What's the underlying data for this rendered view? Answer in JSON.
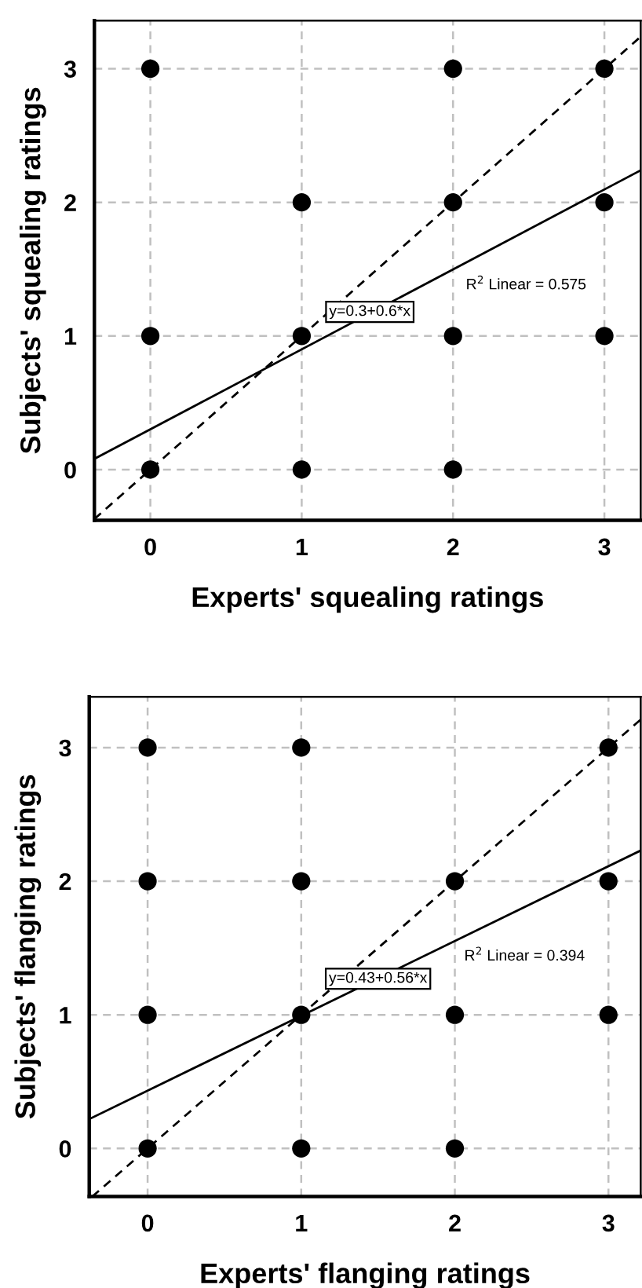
{
  "chart_data": [
    {
      "type": "scatter",
      "xlabel": "Experts' squealing ratings",
      "ylabel": "Subjects' squealing ratings",
      "xlim": [
        -0.37,
        3.24
      ],
      "ylim": [
        -0.38,
        3.36
      ],
      "xticks": [
        0,
        1,
        2,
        3
      ],
      "yticks": [
        0,
        1,
        2,
        3
      ],
      "grid": true,
      "series": [
        {
          "type": "scatter",
          "marker": "circle",
          "color": "#000000",
          "x": [
            0,
            2,
            3,
            1,
            2,
            3,
            0,
            1,
            2,
            3,
            0,
            1,
            2
          ],
          "values": [
            3,
            3,
            3,
            2,
            2,
            2,
            1,
            1,
            1,
            1,
            0,
            0,
            0
          ]
        },
        {
          "type": "line",
          "color": "#000000",
          "line_style": "solid",
          "x": [
            -0.37,
            3.24
          ],
          "values": [
            0.08,
            2.24
          ]
        },
        {
          "type": "line",
          "color": "#000000",
          "line_style": "dashed",
          "x": [
            -0.37,
            3.24
          ],
          "values": [
            -0.37,
            3.24
          ]
        }
      ],
      "annotations": [
        {
          "text": "y=0.3+0.6*x",
          "x": 1.45,
          "y": 1.18
        },
        "R$^{2}$ Linear = 0.575"
      ]
    },
    {
      "type": "scatter",
      "xlabel": "Experts' flanging ratings",
      "ylabel": "Subjects' flanging ratings",
      "xlim": [
        -0.38,
        3.21
      ],
      "ylim": [
        -0.36,
        3.38
      ],
      "xticks": [
        0,
        1,
        2,
        3
      ],
      "yticks": [
        0,
        1,
        2,
        3
      ],
      "grid": true,
      "series": [
        {
          "type": "scatter",
          "marker": "circle",
          "color": "#000000",
          "x": [
            0,
            1,
            3,
            0,
            1,
            2,
            3,
            0,
            1,
            2,
            3,
            0,
            1,
            2
          ],
          "values": [
            3,
            3,
            3,
            2,
            2,
            2,
            2,
            1,
            1,
            1,
            1,
            0,
            0,
            0
          ]
        },
        {
          "type": "line",
          "color": "#000000",
          "line_style": "solid",
          "x": [
            -0.38,
            3.21
          ],
          "values": [
            0.22,
            2.23
          ]
        },
        {
          "type": "line",
          "color": "#000000",
          "line_style": "dashed",
          "x": [
            -0.36,
            3.21
          ],
          "values": [
            -0.36,
            3.21
          ]
        }
      ],
      "annotations": [
        {
          "text": "y=0.43+0.56*x",
          "x": 1.5,
          "y": 1.27
        },
        "R$^{2}$ Linear = 0.394"
      ]
    }
  ]
}
